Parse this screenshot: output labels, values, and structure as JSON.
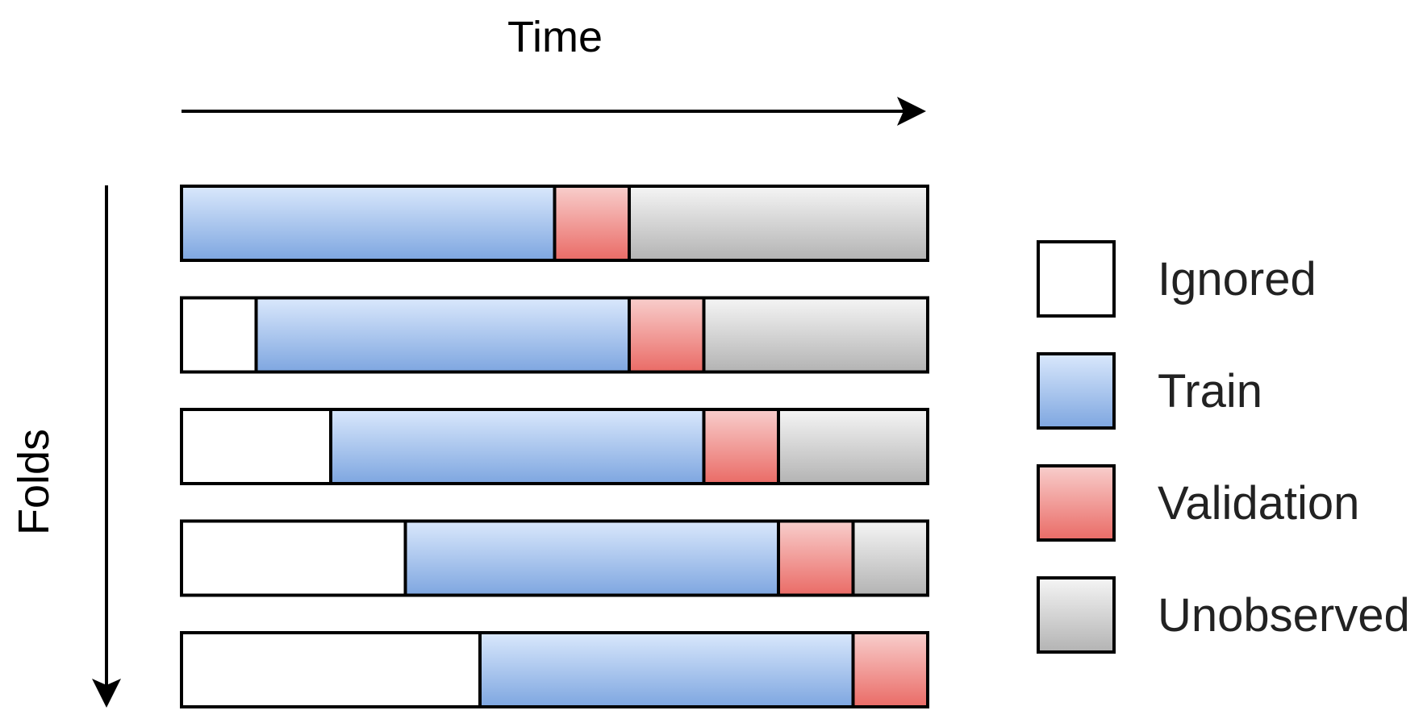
{
  "axes": {
    "time_label": "Time",
    "folds_label": "Folds"
  },
  "segment_types": {
    "ignored": {
      "label": "Ignored",
      "fill_top": "#ffffff",
      "fill_bottom": "#ffffff"
    },
    "train": {
      "label": "Train",
      "fill_top": "#dae8fc",
      "fill_bottom": "#7ea6e0"
    },
    "validation": {
      "label": "Validation",
      "fill_top": "#f8cecc",
      "fill_bottom": "#ea6b66"
    },
    "unobserved": {
      "label": "Unobserved",
      "fill_top": "#f5f5f5",
      "fill_bottom": "#b3b3b3"
    }
  },
  "legend": {
    "order": [
      "ignored",
      "train",
      "validation",
      "unobserved"
    ]
  },
  "folds": [
    [
      {
        "type": "train",
        "units": 5
      },
      {
        "type": "validation",
        "units": 1
      },
      {
        "type": "unobserved",
        "units": 4
      }
    ],
    [
      {
        "type": "ignored",
        "units": 1
      },
      {
        "type": "train",
        "units": 5
      },
      {
        "type": "validation",
        "units": 1
      },
      {
        "type": "unobserved",
        "units": 3
      }
    ],
    [
      {
        "type": "ignored",
        "units": 2
      },
      {
        "type": "train",
        "units": 5
      },
      {
        "type": "validation",
        "units": 1
      },
      {
        "type": "unobserved",
        "units": 2
      }
    ],
    [
      {
        "type": "ignored",
        "units": 3
      },
      {
        "type": "train",
        "units": 5
      },
      {
        "type": "validation",
        "units": 1
      },
      {
        "type": "unobserved",
        "units": 1
      }
    ],
    [
      {
        "type": "ignored",
        "units": 4
      },
      {
        "type": "train",
        "units": 5
      },
      {
        "type": "validation",
        "units": 1
      }
    ]
  ],
  "outline_color": "#000000"
}
